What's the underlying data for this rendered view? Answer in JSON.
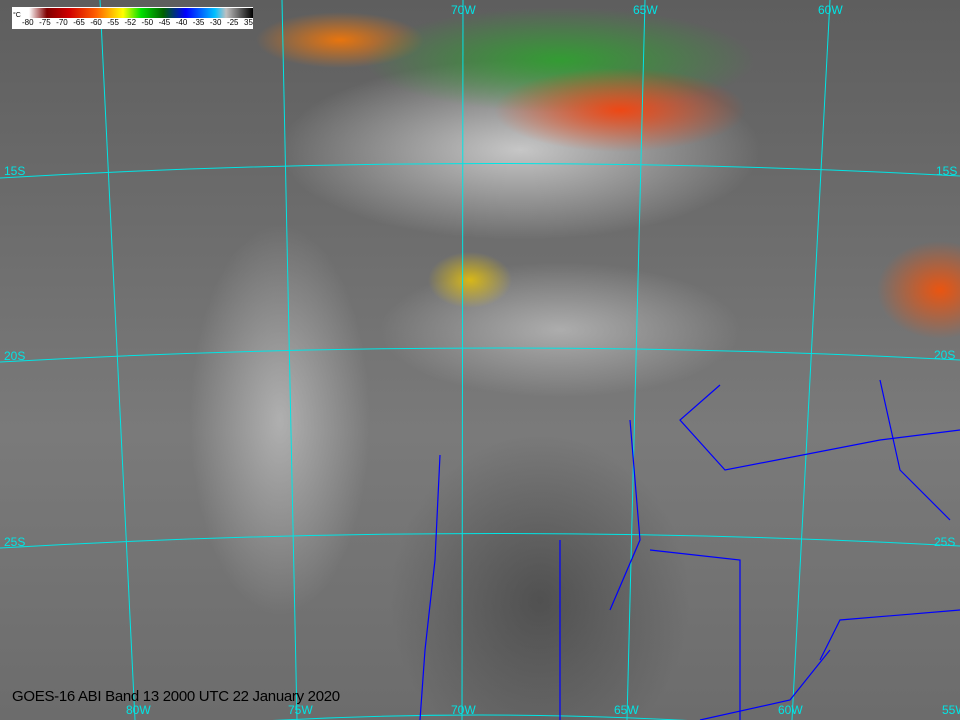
{
  "title": "GOES-16 ABI Band 13 2000 UTC 22 January 2020",
  "colorbar": {
    "unit": "°C",
    "ticks": [
      "-80",
      "-75",
      "-70",
      "-65",
      "-60",
      "-55",
      "-52",
      "-50",
      "-45",
      "-40",
      "-35",
      "-30",
      "-25",
      "35"
    ]
  },
  "graticule": {
    "bottom_lon_labels": [
      "80W",
      "75W",
      "70W",
      "65W",
      "60W",
      "55W"
    ],
    "top_lon_labels": [
      "70W",
      "65W",
      "60W"
    ],
    "lat_labels_left": [
      "15S",
      "20S",
      "25S"
    ],
    "lat_labels_right": [
      "15S",
      "20S",
      "25S"
    ],
    "color": "#00e5e5"
  },
  "border_color": "#0000ff"
}
